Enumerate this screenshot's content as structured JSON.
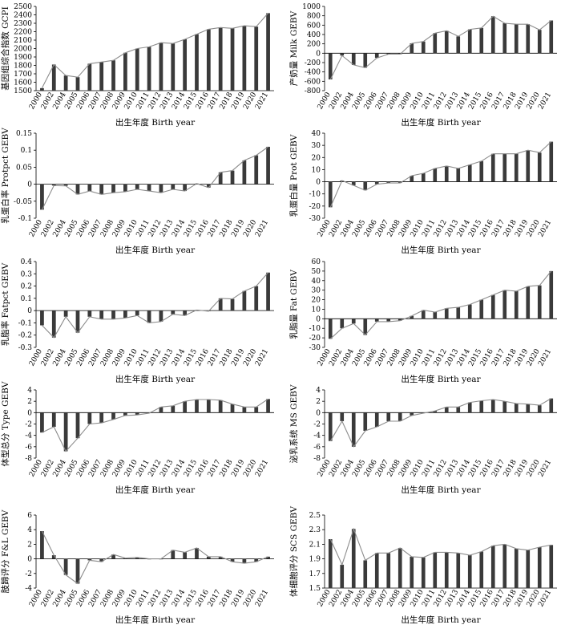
{
  "years": [
    "2000",
    "2002",
    "2004",
    "2005",
    "2006",
    "2007",
    "2008",
    "2009",
    "2010",
    "2011",
    "2012",
    "2013",
    "2014",
    "2015",
    "2016",
    "2017",
    "2018",
    "2019",
    "2020",
    "2021"
  ],
  "x_axis_label": "出生年度 Birth year",
  "chart_data": [
    {
      "type": "bar",
      "ylabel": "基因组综合指数 GCPI",
      "ylim": [
        1500,
        2500
      ],
      "yticks": [
        1500,
        1600,
        1700,
        1800,
        1900,
        2000,
        2100,
        2200,
        2300,
        2400,
        2500
      ],
      "values": [
        1530,
        1810,
        1680,
        1660,
        1820,
        1840,
        1860,
        1950,
        2000,
        2020,
        2070,
        2060,
        2110,
        2170,
        2230,
        2250,
        2240,
        2270,
        2260,
        2420
      ]
    },
    {
      "type": "bar",
      "ylabel": "产奶量 Milk GEBV",
      "ylim": [
        -800,
        1000
      ],
      "yticks": [
        -800,
        -600,
        -400,
        -200,
        0,
        200,
        400,
        600,
        800,
        1000
      ],
      "values": [
        -560,
        -50,
        -250,
        -310,
        -100,
        -20,
        -20,
        210,
        250,
        430,
        480,
        360,
        510,
        540,
        790,
        640,
        620,
        620,
        500,
        700
      ]
    },
    {
      "type": "bar",
      "ylabel": "乳蛋白率 Protpct GEBV",
      "ylim": [
        -0.1,
        0.15
      ],
      "yticks": [
        -0.1,
        -0.05,
        0,
        0.05,
        0.1,
        0.15
      ],
      "values": [
        -0.075,
        -0.004,
        -0.005,
        -0.03,
        -0.02,
        -0.03,
        -0.025,
        -0.022,
        -0.015,
        -0.02,
        -0.025,
        -0.015,
        -0.02,
        0.002,
        -0.01,
        0.035,
        0.04,
        0.07,
        0.085,
        0.11
      ]
    },
    {
      "type": "bar",
      "ylabel": "乳蛋白量 Prot GEBV",
      "ylim": [
        -30,
        40
      ],
      "yticks": [
        -30,
        -20,
        -10,
        0,
        10,
        20,
        30,
        40
      ],
      "values": [
        -21,
        1,
        -3,
        -7,
        -2,
        -1,
        -1,
        5,
        7,
        11,
        13,
        11,
        14,
        17,
        23,
        23,
        23,
        26,
        24,
        33
      ]
    },
    {
      "type": "bar",
      "ylabel": "乳脂率 Fatpct GEBV",
      "ylim": [
        -0.3,
        0.4
      ],
      "yticks": [
        -0.3,
        -0.2,
        -0.1,
        0,
        0.1,
        0.2,
        0.3,
        0.4
      ],
      "values": [
        -0.12,
        -0.22,
        -0.05,
        -0.18,
        -0.05,
        -0.07,
        -0.07,
        -0.06,
        -0.04,
        -0.1,
        -0.09,
        -0.03,
        -0.04,
        0.005,
        -0.005,
        0.1,
        0.095,
        0.16,
        0.2,
        0.31
      ]
    },
    {
      "type": "bar",
      "ylabel": "乳脂量 Fat GEBV",
      "ylim": [
        -30,
        60
      ],
      "yticks": [
        -30,
        -20,
        -10,
        0,
        10,
        20,
        30,
        40,
        50,
        60
      ],
      "values": [
        -21,
        -10,
        -5,
        -17,
        -3,
        -3,
        -2,
        3,
        9,
        7,
        11,
        12,
        15,
        20,
        25,
        30,
        29,
        34,
        35,
        50
      ]
    },
    {
      "type": "bar",
      "ylabel": "体型总分 Type GEBV",
      "ylim": [
        -8,
        4
      ],
      "yticks": [
        -8,
        -6,
        -4,
        -2,
        0,
        2,
        4
      ],
      "values": [
        -3.5,
        -2.5,
        -6.8,
        -4.5,
        -2,
        -1.8,
        -1.2,
        -0.5,
        -0.4,
        -0.1,
        1,
        1.2,
        2,
        2.3,
        2.3,
        2.2,
        1.5,
        1,
        1,
        2.4
      ]
    },
    {
      "type": "bar",
      "ylabel": "泌乳系统 MS GEBV",
      "ylim": [
        -8,
        4
      ],
      "yticks": [
        -8,
        -6,
        -4,
        -2,
        0,
        2,
        4
      ],
      "values": [
        -5,
        -1.5,
        -6,
        -3.2,
        -2.5,
        -1.5,
        -1.5,
        -0.5,
        -0.1,
        0.3,
        1,
        1,
        1.8,
        2.1,
        2.3,
        2,
        1.6,
        1.5,
        1.3,
        2.5
      ]
    },
    {
      "type": "bar",
      "ylabel": "肢蹄评分 F&L GEBV",
      "ylim": [
        -4,
        6
      ],
      "yticks": [
        -4,
        -2,
        0,
        2,
        4,
        6
      ],
      "values": [
        3.8,
        0.5,
        -2.2,
        -3.4,
        -0.2,
        -0.4,
        0.6,
        0.1,
        0.2,
        0,
        0,
        1.2,
        0.9,
        1.5,
        0.3,
        0.3,
        -0.4,
        -0.6,
        -0.4,
        0.3
      ]
    },
    {
      "type": "bar",
      "ylabel": "体细胞评分 SCS GEBV",
      "ylim": [
        1.5,
        2.5
      ],
      "yticks": [
        1.5,
        1.7,
        1.9,
        2.1,
        2.3,
        2.5
      ],
      "values": [
        2.17,
        1.82,
        2.31,
        1.88,
        1.98,
        1.98,
        2.05,
        1.93,
        1.92,
        1.99,
        1.99,
        1.98,
        1.95,
        2.0,
        2.08,
        2.1,
        2.04,
        2.02,
        2.06,
        2.09
      ]
    }
  ]
}
